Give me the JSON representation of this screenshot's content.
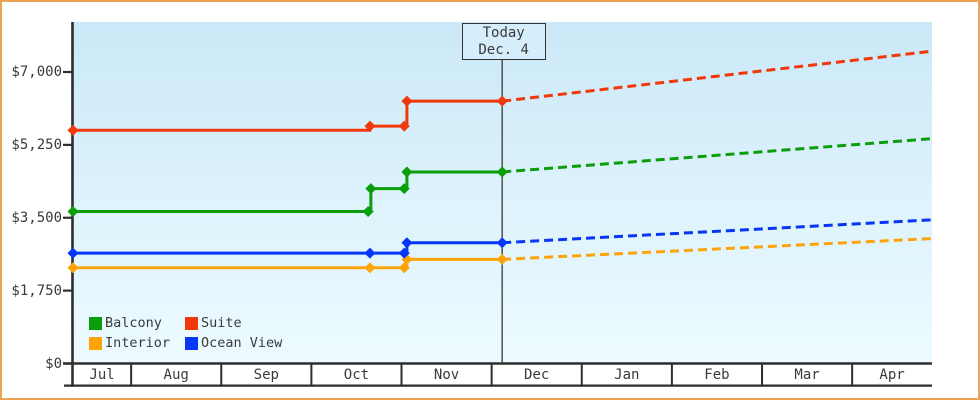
{
  "today": {
    "line1": "Today",
    "line2": "Dec. 4",
    "m": 5.117
  },
  "y_axis": {
    "max": 7000,
    "ticks": [
      {
        "value": 0,
        "label": "$0"
      },
      {
        "value": 1750,
        "label": "$1,750"
      },
      {
        "value": 3500,
        "label": "$3,500"
      },
      {
        "value": 5250,
        "label": "$5,250"
      },
      {
        "value": 7000,
        "label": "$7,000"
      }
    ]
  },
  "x_axis": {
    "start_m": 0.355,
    "end_m": 9.886,
    "months": [
      "Jul",
      "Aug",
      "Sep",
      "Oct",
      "Nov",
      "Dec",
      "Jan",
      "Feb",
      "Mar",
      "Apr"
    ]
  },
  "legend": {
    "items": [
      {
        "label": "Balcony",
        "color_key": "balcony"
      },
      {
        "label": "Suite",
        "color_key": "suite"
      },
      {
        "label": "Interior",
        "color_key": "interior"
      },
      {
        "label": "Ocean View",
        "color_key": "ocean_view"
      }
    ]
  },
  "colors": {
    "balcony": "#0b9e0b",
    "suite": "#f1380a",
    "interior": "#ffa408",
    "ocean_view": "#0636f6",
    "axis": "#2e2e2e",
    "today_line": "#444444",
    "frame_border": "#eba457",
    "text": "#3a3a3a",
    "plot_bg_top": "#cbe8f8",
    "plot_bg_mid": "#def3fc",
    "plot_bg_bottom": "#edfbff"
  },
  "chart_data": {
    "type": "line",
    "style": "step-price-history-with-dashed-forecast",
    "x_unit": "month_index_0_is_jul1",
    "ylim": [
      0,
      7000
    ],
    "series": [
      {
        "name": "Interior",
        "color_key": "interior",
        "solid": [
          [
            0.355,
            2300
          ],
          [
            3.65,
            2300
          ],
          [
            4.03,
            2300
          ],
          [
            4.06,
            2500
          ],
          [
            5.117,
            2500
          ]
        ],
        "dashed": [
          [
            5.117,
            2500
          ],
          [
            9.886,
            3000
          ]
        ]
      },
      {
        "name": "Ocean View",
        "color_key": "ocean_view",
        "solid": [
          [
            0.355,
            2650
          ],
          [
            3.65,
            2650
          ],
          [
            4.03,
            2650
          ],
          [
            4.06,
            2900
          ],
          [
            5.117,
            2900
          ]
        ],
        "dashed": [
          [
            5.117,
            2900
          ],
          [
            9.886,
            3450
          ]
        ]
      },
      {
        "name": "Balcony",
        "color_key": "balcony",
        "solid": [
          [
            0.355,
            3650
          ],
          [
            3.63,
            3650
          ],
          [
            3.66,
            4200
          ],
          [
            4.03,
            4200
          ],
          [
            4.06,
            4600
          ],
          [
            5.117,
            4600
          ]
        ],
        "dashed": [
          [
            5.117,
            4600
          ],
          [
            9.886,
            5400
          ]
        ]
      },
      {
        "name": "Suite",
        "color_key": "suite",
        "solid": [
          [
            0.355,
            5600
          ],
          [
            3.65,
            5700
          ],
          [
            4.03,
            5700
          ],
          [
            4.06,
            6300
          ],
          [
            5.117,
            6300
          ]
        ],
        "dashed": [
          [
            5.117,
            6300
          ],
          [
            9.886,
            7500
          ]
        ]
      }
    ]
  }
}
